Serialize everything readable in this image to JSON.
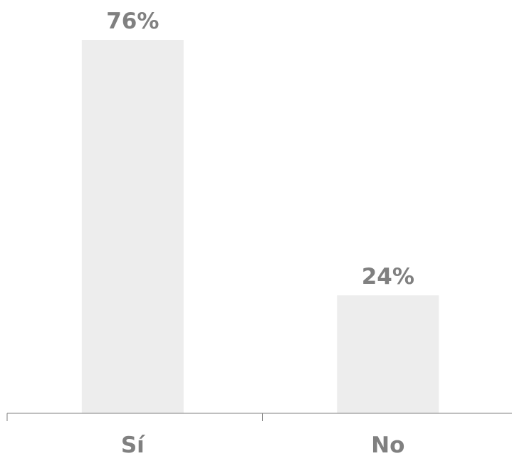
{
  "chart_data": {
    "type": "bar",
    "categories": [
      "Sí",
      "No"
    ],
    "values": [
      76,
      24
    ],
    "value_labels": [
      "76%",
      "24%"
    ],
    "value_unit": "%",
    "ylim": [
      0,
      76
    ],
    "grid": false,
    "legend": "none",
    "colors": {
      "bar": "#ededed",
      "text": "#808080",
      "axis": "#7f7f7f"
    }
  }
}
